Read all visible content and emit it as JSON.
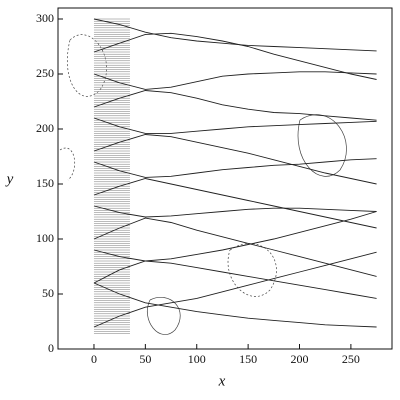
{
  "chart_data": {
    "type": "line",
    "x_label": "x",
    "y_label": "y",
    "x": [
      0,
      25,
      50,
      75,
      100,
      125,
      150,
      175,
      200,
      225,
      250,
      275
    ],
    "series": [
      {
        "color": "#222",
        "values": [
          300,
          295,
          288,
          283,
          280,
          278,
          276,
          275,
          274,
          273,
          272,
          271
        ]
      },
      {
        "color": "#222",
        "values": [
          270,
          278,
          286,
          287,
          284,
          280,
          275,
          268,
          262,
          256,
          250,
          245
        ]
      },
      {
        "color": "#222",
        "values": [
          250,
          242,
          236,
          238,
          243,
          248,
          250,
          251,
          252,
          252,
          251,
          250
        ]
      },
      {
        "color": "#222",
        "values": [
          220,
          228,
          235,
          233,
          228,
          222,
          218,
          215,
          214,
          212,
          210,
          208
        ]
      },
      {
        "color": "#222",
        "values": [
          210,
          202,
          196,
          196,
          198,
          200,
          202,
          203,
          204,
          205,
          206,
          207
        ]
      },
      {
        "color": "#222",
        "values": [
          180,
          188,
          195,
          193,
          188,
          183,
          178,
          172,
          166,
          160,
          155,
          150
        ]
      },
      {
        "color": "#222",
        "values": [
          170,
          162,
          156,
          157,
          160,
          163,
          165,
          167,
          168,
          170,
          172,
          173
        ]
      },
      {
        "color": "#222",
        "values": [
          140,
          148,
          155,
          150,
          145,
          140,
          135,
          130,
          125,
          120,
          115,
          110
        ]
      },
      {
        "color": "#222",
        "values": [
          130,
          124,
          120,
          121,
          123,
          125,
          127,
          128,
          128,
          127,
          126,
          125
        ]
      },
      {
        "color": "#222",
        "values": [
          100,
          110,
          119,
          115,
          108,
          102,
          96,
          90,
          84,
          78,
          72,
          66
        ]
      },
      {
        "color": "#222",
        "values": [
          90,
          84,
          80,
          82,
          86,
          90,
          95,
          100,
          106,
          112,
          118,
          125
        ]
      },
      {
        "color": "#222",
        "values": [
          60,
          72,
          80,
          78,
          74,
          70,
          66,
          62,
          58,
          54,
          50,
          46
        ]
      },
      {
        "color": "#222",
        "values": [
          20,
          30,
          38,
          42,
          46,
          52,
          58,
          64,
          70,
          76,
          82,
          88
        ]
      },
      {
        "color": "#222",
        "values": [
          60,
          50,
          42,
          38,
          34,
          31,
          28,
          26,
          24,
          22,
          21,
          20
        ]
      }
    ],
    "xlim": [
      -35,
      290
    ],
    "ylim": [
      0,
      310
    ],
    "xticks": [
      0,
      50,
      100,
      150,
      200,
      250
    ],
    "yticks": [
      0,
      50,
      100,
      150,
      200,
      250,
      300
    ]
  }
}
